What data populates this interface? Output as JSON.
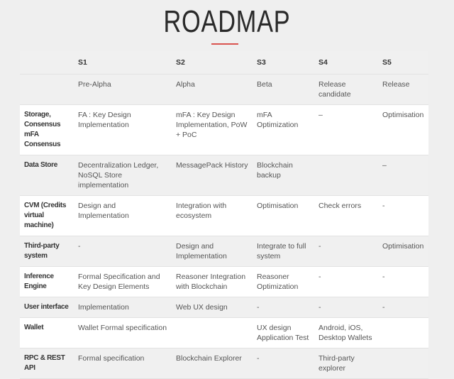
{
  "title": "ROADMAP",
  "accent": "#d9534f",
  "columns": [
    "",
    "S1",
    "S2",
    "S3",
    "S4",
    "S5"
  ],
  "stages": [
    "",
    "Pre-Alpha",
    "Alpha",
    "Beta",
    "Release candidate",
    "Release"
  ],
  "rows": [
    {
      "label": "Storage, Consensus mFA Consensus",
      "cells": [
        "FA : Key Design Implementation",
        "mFA : Key Design Implementation, PoW + PoC",
        "mFA Optimization",
        "–",
        "Optimisation"
      ]
    },
    {
      "label": "Data Store",
      "cells": [
        "Decentralization Ledger, NoSQL Store implementation",
        "MessagePack History",
        "Blockchain backup",
        "",
        "–"
      ]
    },
    {
      "label": "CVM (Credits virtual machine)",
      "cells": [
        "Design and Implementation",
        "Integration with ecosystem",
        "Optimisation",
        "Check errors",
        "-"
      ]
    },
    {
      "label": "Third-party system",
      "cells": [
        "-",
        "Design and Implementation",
        "Integrate to full system",
        "-",
        "Optimisation"
      ]
    },
    {
      "label": "Inference Engine",
      "cells": [
        "Formal Specification and Key Design Elements",
        "Reasoner Integration with Blockchain",
        "Reasoner Optimization",
        "-",
        "-"
      ]
    },
    {
      "label": "User interface",
      "cells": [
        "Implementation",
        "Web UX design",
        "-",
        "-",
        "-"
      ]
    },
    {
      "label": "Wallet",
      "cells": [
        "Wallet Formal specification",
        "",
        "UX design Application Test",
        "Android, iOS, Desktop Wallets",
        ""
      ]
    },
    {
      "label": "RPC & REST API",
      "cells": [
        "Formal specification",
        "Blockchain Explorer",
        "-",
        "Third-party explorer",
        ""
      ]
    }
  ]
}
